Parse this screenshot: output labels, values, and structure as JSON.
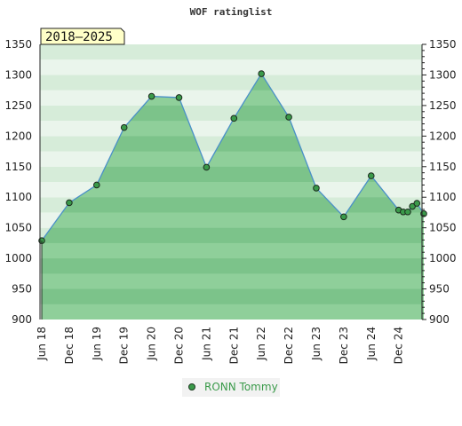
{
  "chart_data": {
    "type": "area",
    "title": "WOF ratinglist",
    "range_label": "2018–2025",
    "ylim": [
      900,
      1350
    ],
    "y_ticks": [
      900,
      950,
      1000,
      1050,
      1100,
      1150,
      1200,
      1250,
      1300,
      1350
    ],
    "x_ticks": [
      {
        "label": "Jun 18",
        "t": 0
      },
      {
        "label": "Dec 18",
        "t": 6
      },
      {
        "label": "Jun 19",
        "t": 12
      },
      {
        "label": "Dec 19",
        "t": 18
      },
      {
        "label": "Jun 20",
        "t": 24
      },
      {
        "label": "Dec 20",
        "t": 30
      },
      {
        "label": "Jun 21",
        "t": 36
      },
      {
        "label": "Dec 21",
        "t": 42
      },
      {
        "label": "Jun 22",
        "t": 48
      },
      {
        "label": "Dec 22",
        "t": 54
      },
      {
        "label": "Jun 23",
        "t": 60
      },
      {
        "label": "Dec 23",
        "t": 66
      },
      {
        "label": "Jun 24",
        "t": 72
      },
      {
        "label": "Dec 24",
        "t": 78
      }
    ],
    "xlim": [
      0,
      83.5
    ],
    "series": [
      {
        "name": "RONN Tommy",
        "color": "#3a9a4a",
        "points": [
          {
            "t": 0,
            "y": 1029
          },
          {
            "t": 6,
            "y": 1091
          },
          {
            "t": 12,
            "y": 1120
          },
          {
            "t": 18,
            "y": 1214
          },
          {
            "t": 24,
            "y": 1265
          },
          {
            "t": 30,
            "y": 1263
          },
          {
            "t": 36,
            "y": 1149
          },
          {
            "t": 42,
            "y": 1229
          },
          {
            "t": 48,
            "y": 1302
          },
          {
            "t": 54,
            "y": 1231
          },
          {
            "t": 60,
            "y": 1115
          },
          {
            "t": 66,
            "y": 1068
          },
          {
            "t": 72,
            "y": 1135
          },
          {
            "t": 78,
            "y": 1079
          },
          {
            "t": 79,
            "y": 1076
          },
          {
            "t": 80,
            "y": 1076
          },
          {
            "t": 81,
            "y": 1085
          },
          {
            "t": 82,
            "y": 1090
          },
          {
            "t": 83.5,
            "y": 1073
          }
        ]
      }
    ],
    "grid": "horizontal-bands",
    "legend": "bottom-center"
  }
}
